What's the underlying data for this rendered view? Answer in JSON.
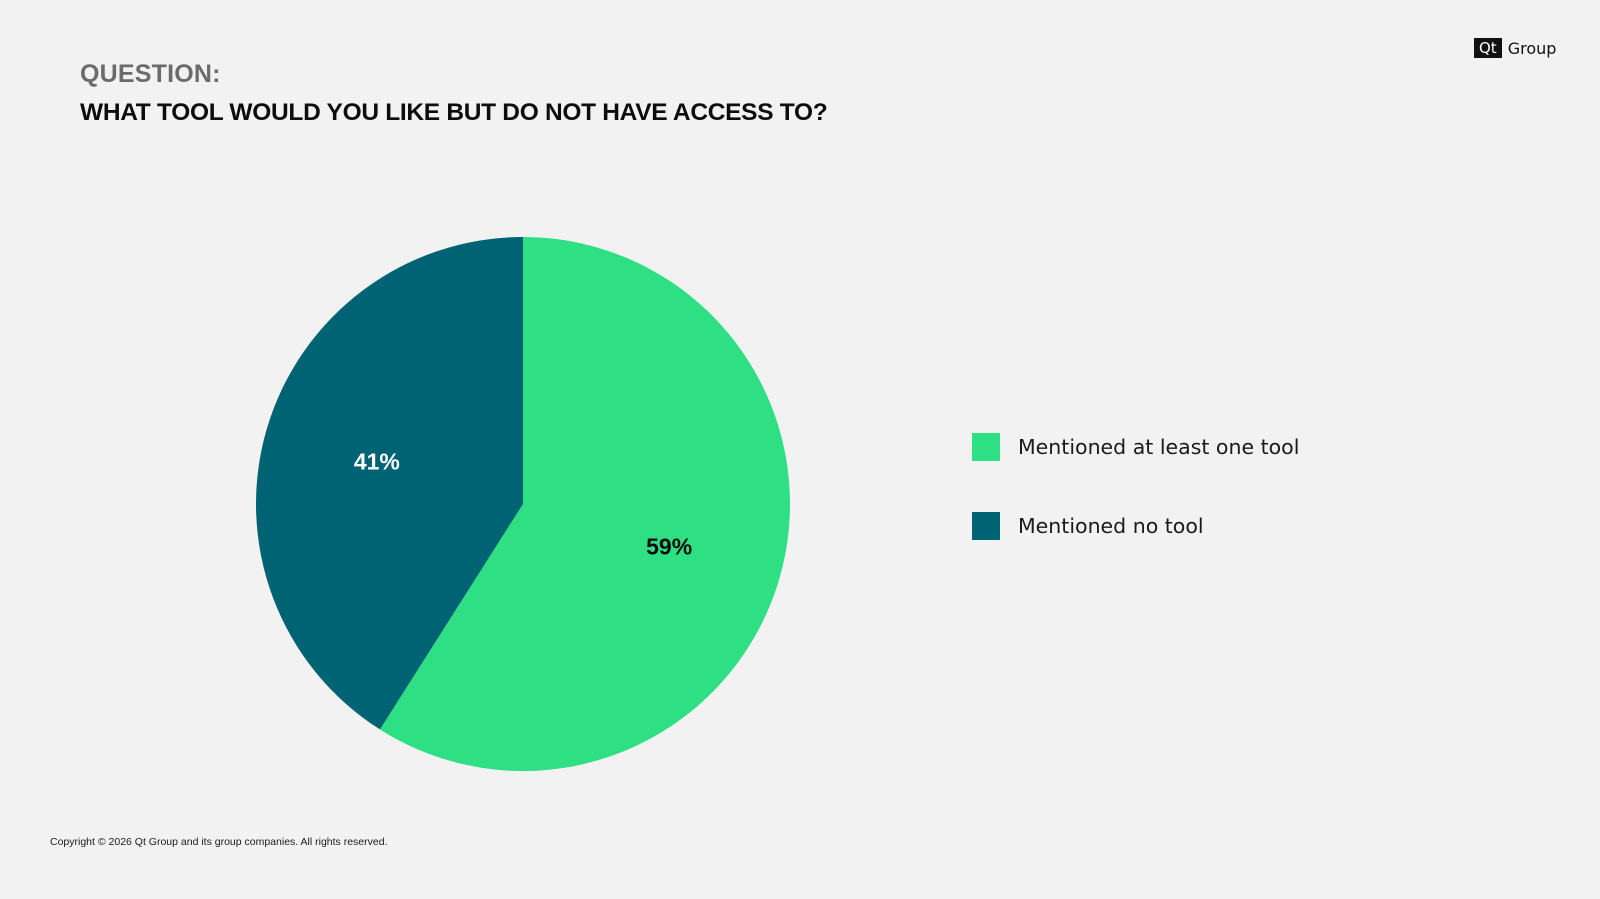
{
  "logo": {
    "mark": "Qt",
    "text": "Group"
  },
  "question": {
    "label": "QUESTION:",
    "text": "WHAT TOOL WOULD YOU LIKE BUT DO NOT HAVE ACCESS TO?"
  },
  "chart_data": {
    "type": "pie",
    "title": "",
    "slices": [
      {
        "name": "Mentioned at least one tool",
        "value": 59,
        "label": "59%",
        "color": "#2fdf84",
        "label_color": "#0d0d0d"
      },
      {
        "name": "Mentioned no tool",
        "value": 41,
        "label": "41%",
        "color": "#006373",
        "label_color": "#ffffff"
      }
    ],
    "start": "12 o'clock",
    "direction": "clockwise",
    "legend_placement": "right"
  },
  "footer": {
    "copyright": "Copyright © 2026 Qt Group and its group companies. All rights reserved."
  }
}
